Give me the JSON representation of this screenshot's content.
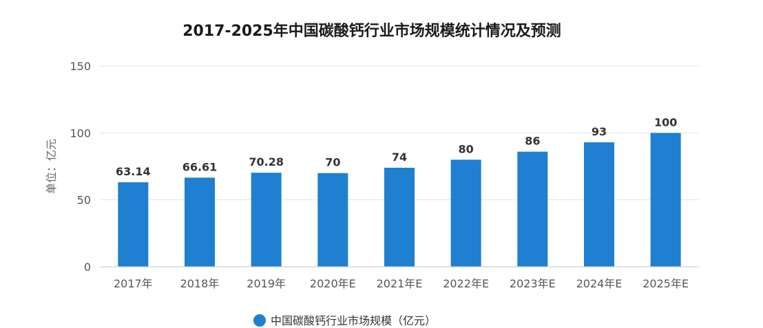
{
  "chart_data": {
    "type": "bar",
    "title": "2017-2025年中国碳酸钙行业市场规模统计情况及预测",
    "ylabel": "单位：亿元",
    "xlabel": "",
    "categories": [
      "2017年",
      "2018年",
      "2019年",
      "2020年E",
      "2021年E",
      "2022年E",
      "2023年E",
      "2024年E",
      "2025年E"
    ],
    "series": [
      {
        "name": "中国碳酸钙行业市场规模（亿元）",
        "values": [
          63.14,
          66.61,
          70.28,
          70,
          74,
          80,
          86,
          93,
          100
        ],
        "labels": [
          "63.14",
          "66.61",
          "70.28",
          "70",
          "74",
          "80",
          "86",
          "93",
          "100"
        ],
        "color": "#1f7fd0"
      }
    ],
    "ylim": [
      0,
      150
    ],
    "yticks": [
      "0",
      "50",
      "100",
      "150"
    ],
    "grid": true,
    "legend_position": "bottom-center"
  }
}
